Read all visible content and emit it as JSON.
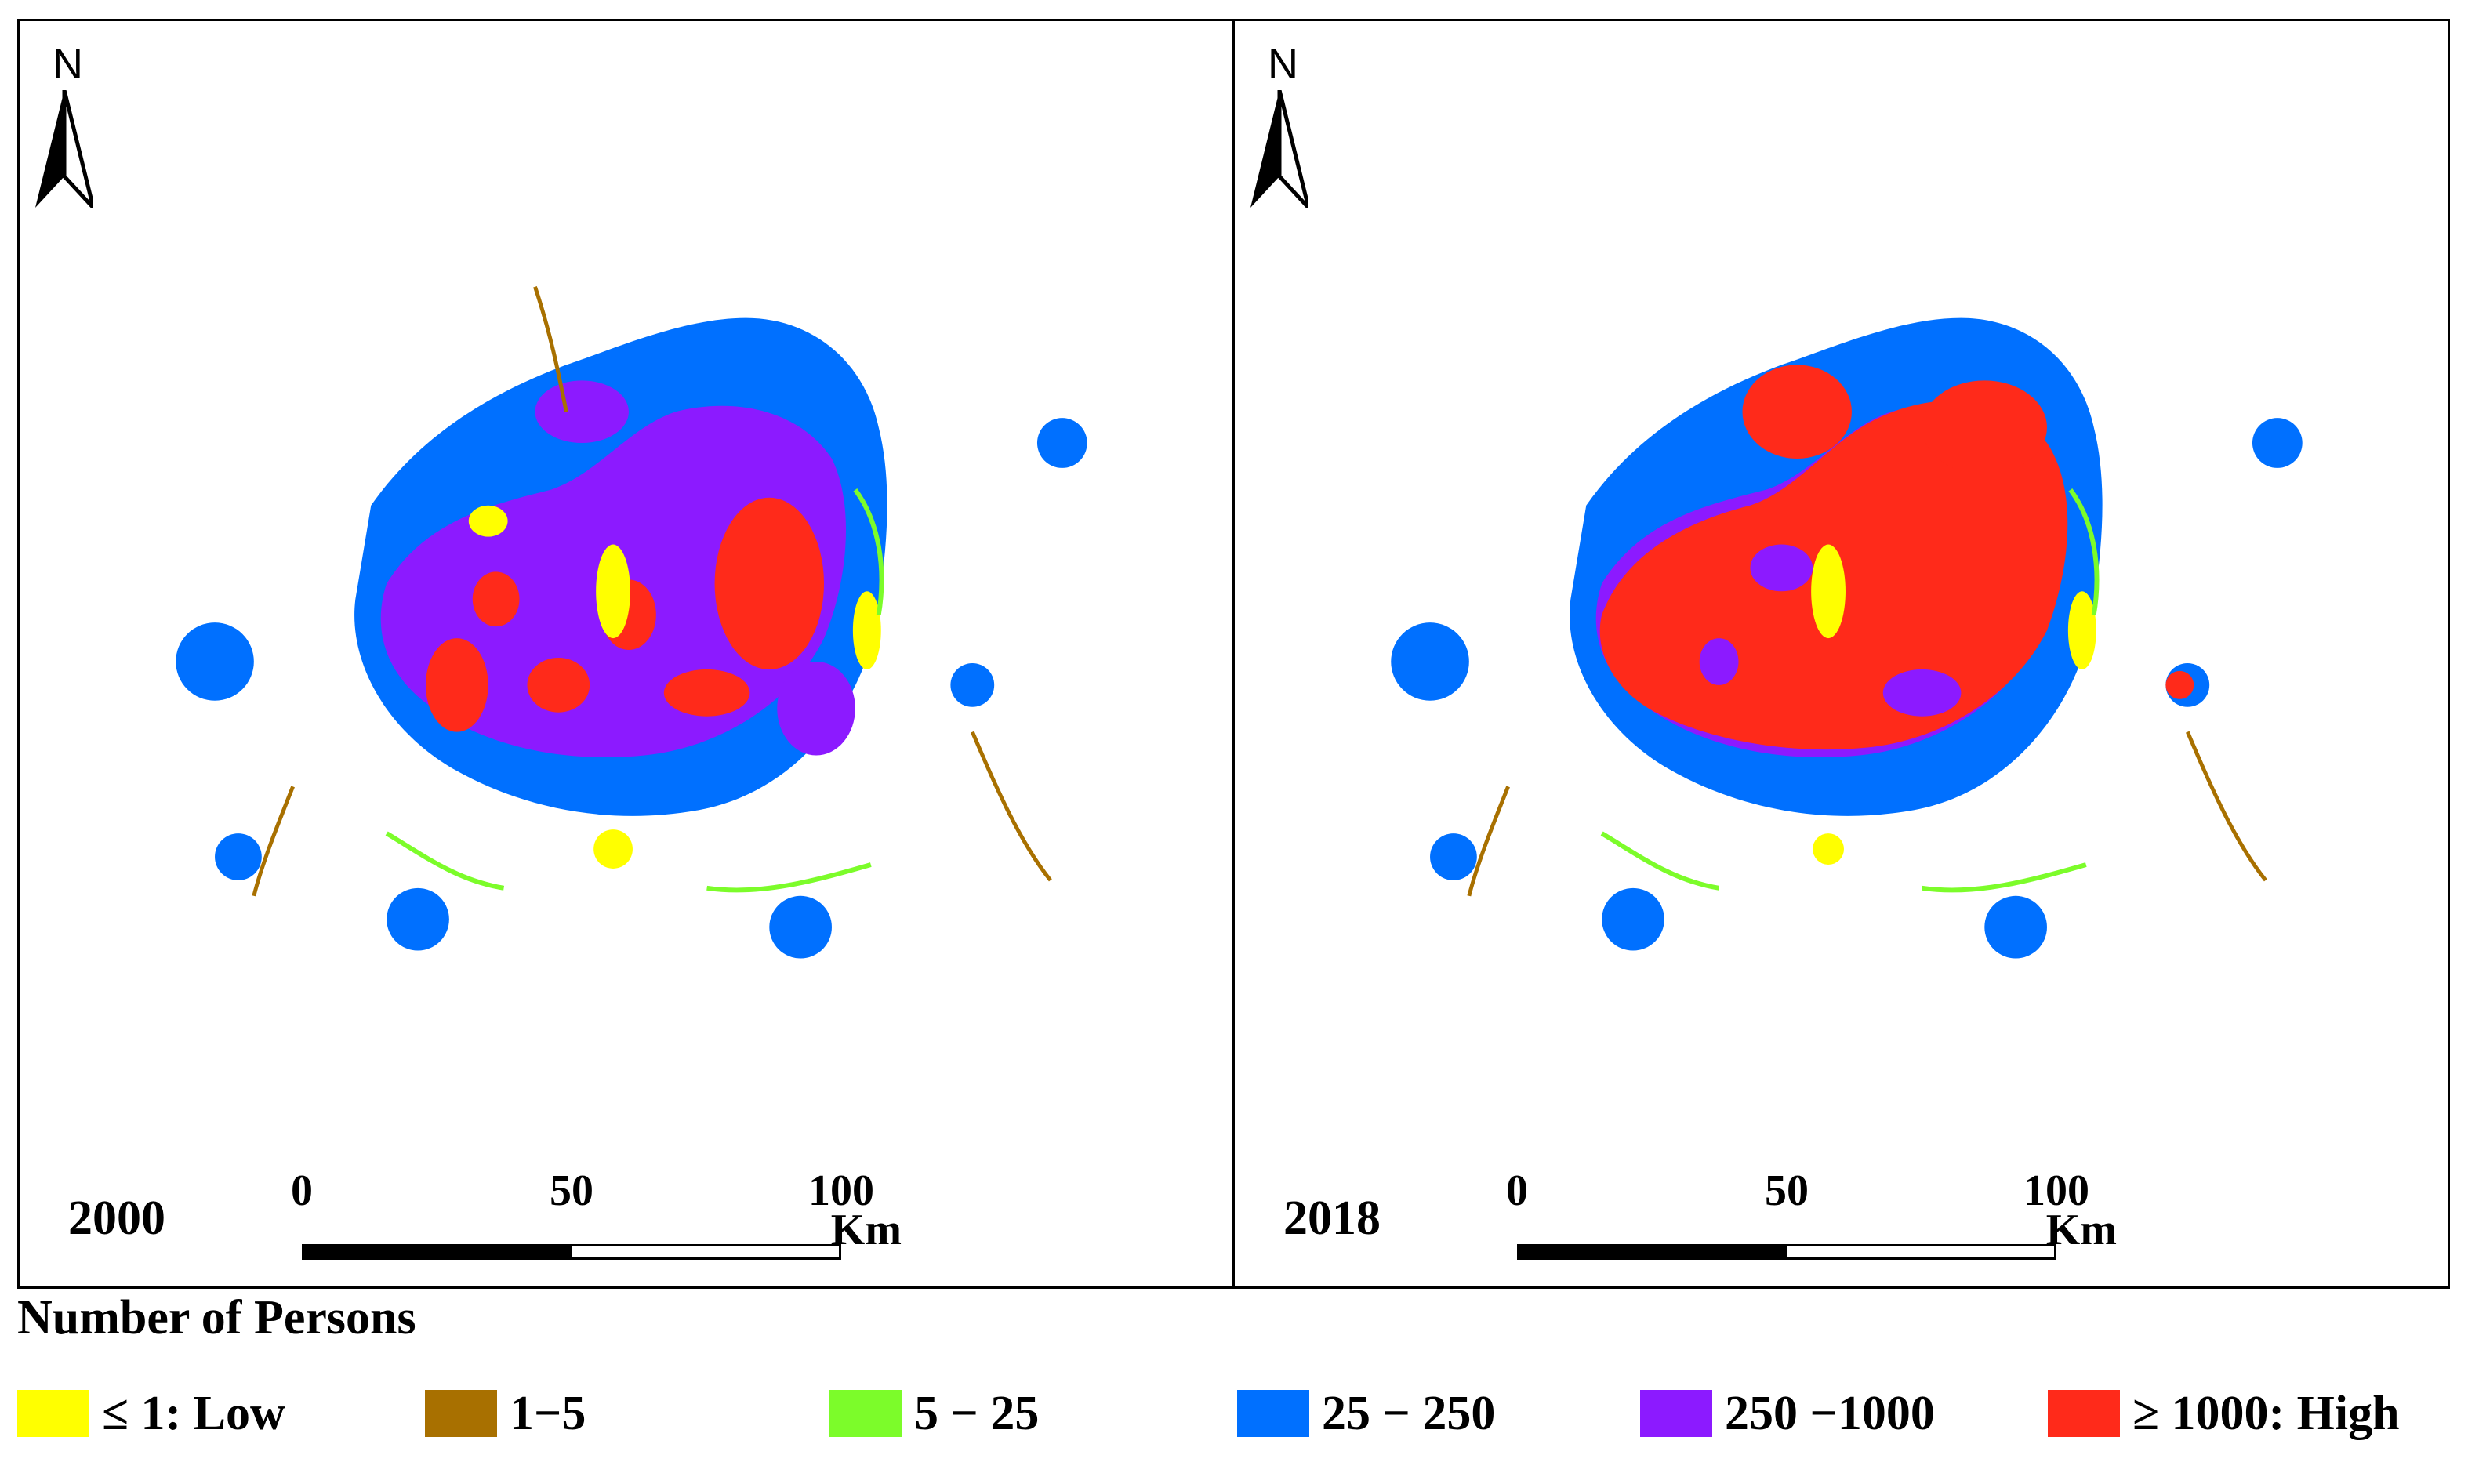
{
  "panels": [
    {
      "year": "2000",
      "north": "N"
    },
    {
      "year": "2018",
      "north": "N"
    }
  ],
  "scale_bar": {
    "ticks": [
      "0",
      "50",
      "100"
    ],
    "unit": "Km"
  },
  "legend": {
    "title": "Number of Persons",
    "items": [
      {
        "label": "≤ 1: Low",
        "color": "#FFFF00"
      },
      {
        "label": "1−5",
        "color": "#A87000"
      },
      {
        "label": "5 − 25",
        "color": "#7CFC2A"
      },
      {
        "label": "25 − 250",
        "color": "#0070FF"
      },
      {
        "label": "250 −1000",
        "color": "#8C1AFF"
      },
      {
        "label": "≥ 1000: High",
        "color": "#FF2A1A"
      }
    ]
  }
}
